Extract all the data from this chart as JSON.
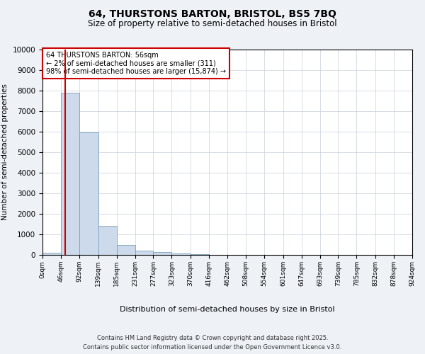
{
  "title1": "64, THURSTONS BARTON, BRISTOL, BS5 7BQ",
  "title2": "Size of property relative to semi-detached houses in Bristol",
  "xlabel": "Distribution of semi-detached houses by size in Bristol",
  "ylabel": "Number of semi-detached properties",
  "bar_values": [
    120,
    7900,
    5950,
    1400,
    480,
    220,
    130,
    80,
    40,
    5,
    3,
    2,
    1,
    0,
    0,
    0,
    0,
    0,
    0,
    0
  ],
  "bin_edges": [
    0,
    46,
    92,
    139,
    185,
    231,
    277,
    323,
    370,
    416,
    462,
    508,
    554,
    601,
    647,
    693,
    739,
    785,
    832,
    878,
    924
  ],
  "xtick_labels": [
    "0sqm",
    "46sqm",
    "92sqm",
    "139sqm",
    "185sqm",
    "231sqm",
    "277sqm",
    "323sqm",
    "370sqm",
    "416sqm",
    "462sqm",
    "508sqm",
    "554sqm",
    "601sqm",
    "647sqm",
    "693sqm",
    "739sqm",
    "785sqm",
    "832sqm",
    "878sqm",
    "924sqm"
  ],
  "bar_color": "#ccdaeb",
  "bar_edge_color": "#7aa0be",
  "red_line_x": 56,
  "annotation_title": "64 THURSTONS BARTON: 56sqm",
  "annotation_line1": "← 2% of semi-detached houses are smaller (311)",
  "annotation_line2": "98% of semi-detached houses are larger (15,874) →",
  "annotation_box_color": "#ffffff",
  "annotation_box_edge": "#cc0000",
  "red_line_color": "#cc0000",
  "ylim": [
    0,
    10000
  ],
  "yticks": [
    0,
    1000,
    2000,
    3000,
    4000,
    5000,
    6000,
    7000,
    8000,
    9000,
    10000
  ],
  "footer1": "Contains HM Land Registry data © Crown copyright and database right 2025.",
  "footer2": "Contains public sector information licensed under the Open Government Licence v3.0.",
  "background_color": "#eef2f7",
  "plot_bg_color": "#ffffff",
  "grid_color": "#c8d0da"
}
